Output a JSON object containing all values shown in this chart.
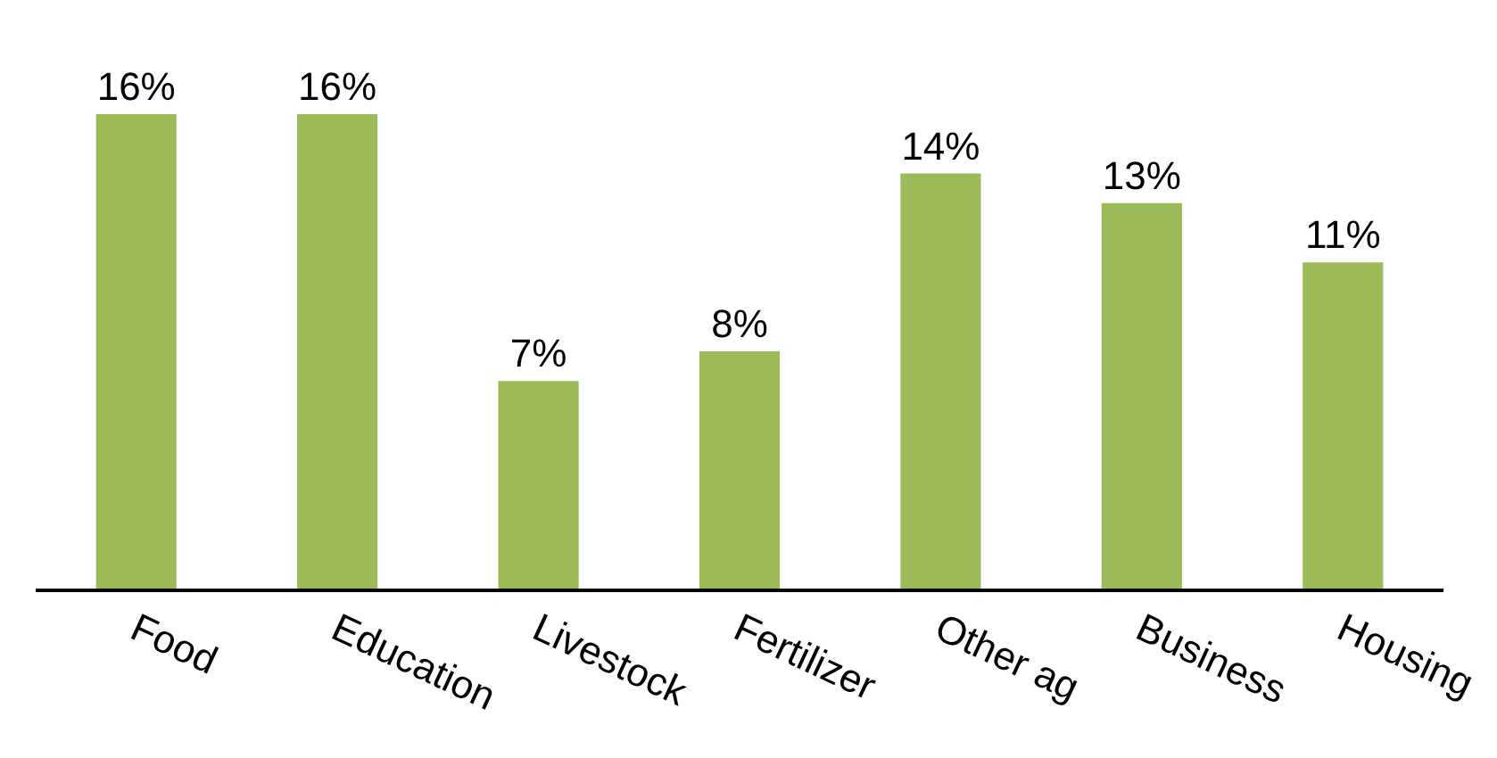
{
  "chart_data": {
    "type": "bar",
    "categories": [
      "Food",
      "Education",
      "Livestock",
      "Fertilizer",
      "Other ag",
      "Business",
      "Housing"
    ],
    "values": [
      16,
      16,
      7,
      8,
      14,
      13,
      11
    ],
    "value_labels": [
      "16%",
      "16%",
      "7%",
      "8%",
      "14%",
      "13%",
      "11%"
    ],
    "color": "#9bbb59",
    "legend": false
  }
}
